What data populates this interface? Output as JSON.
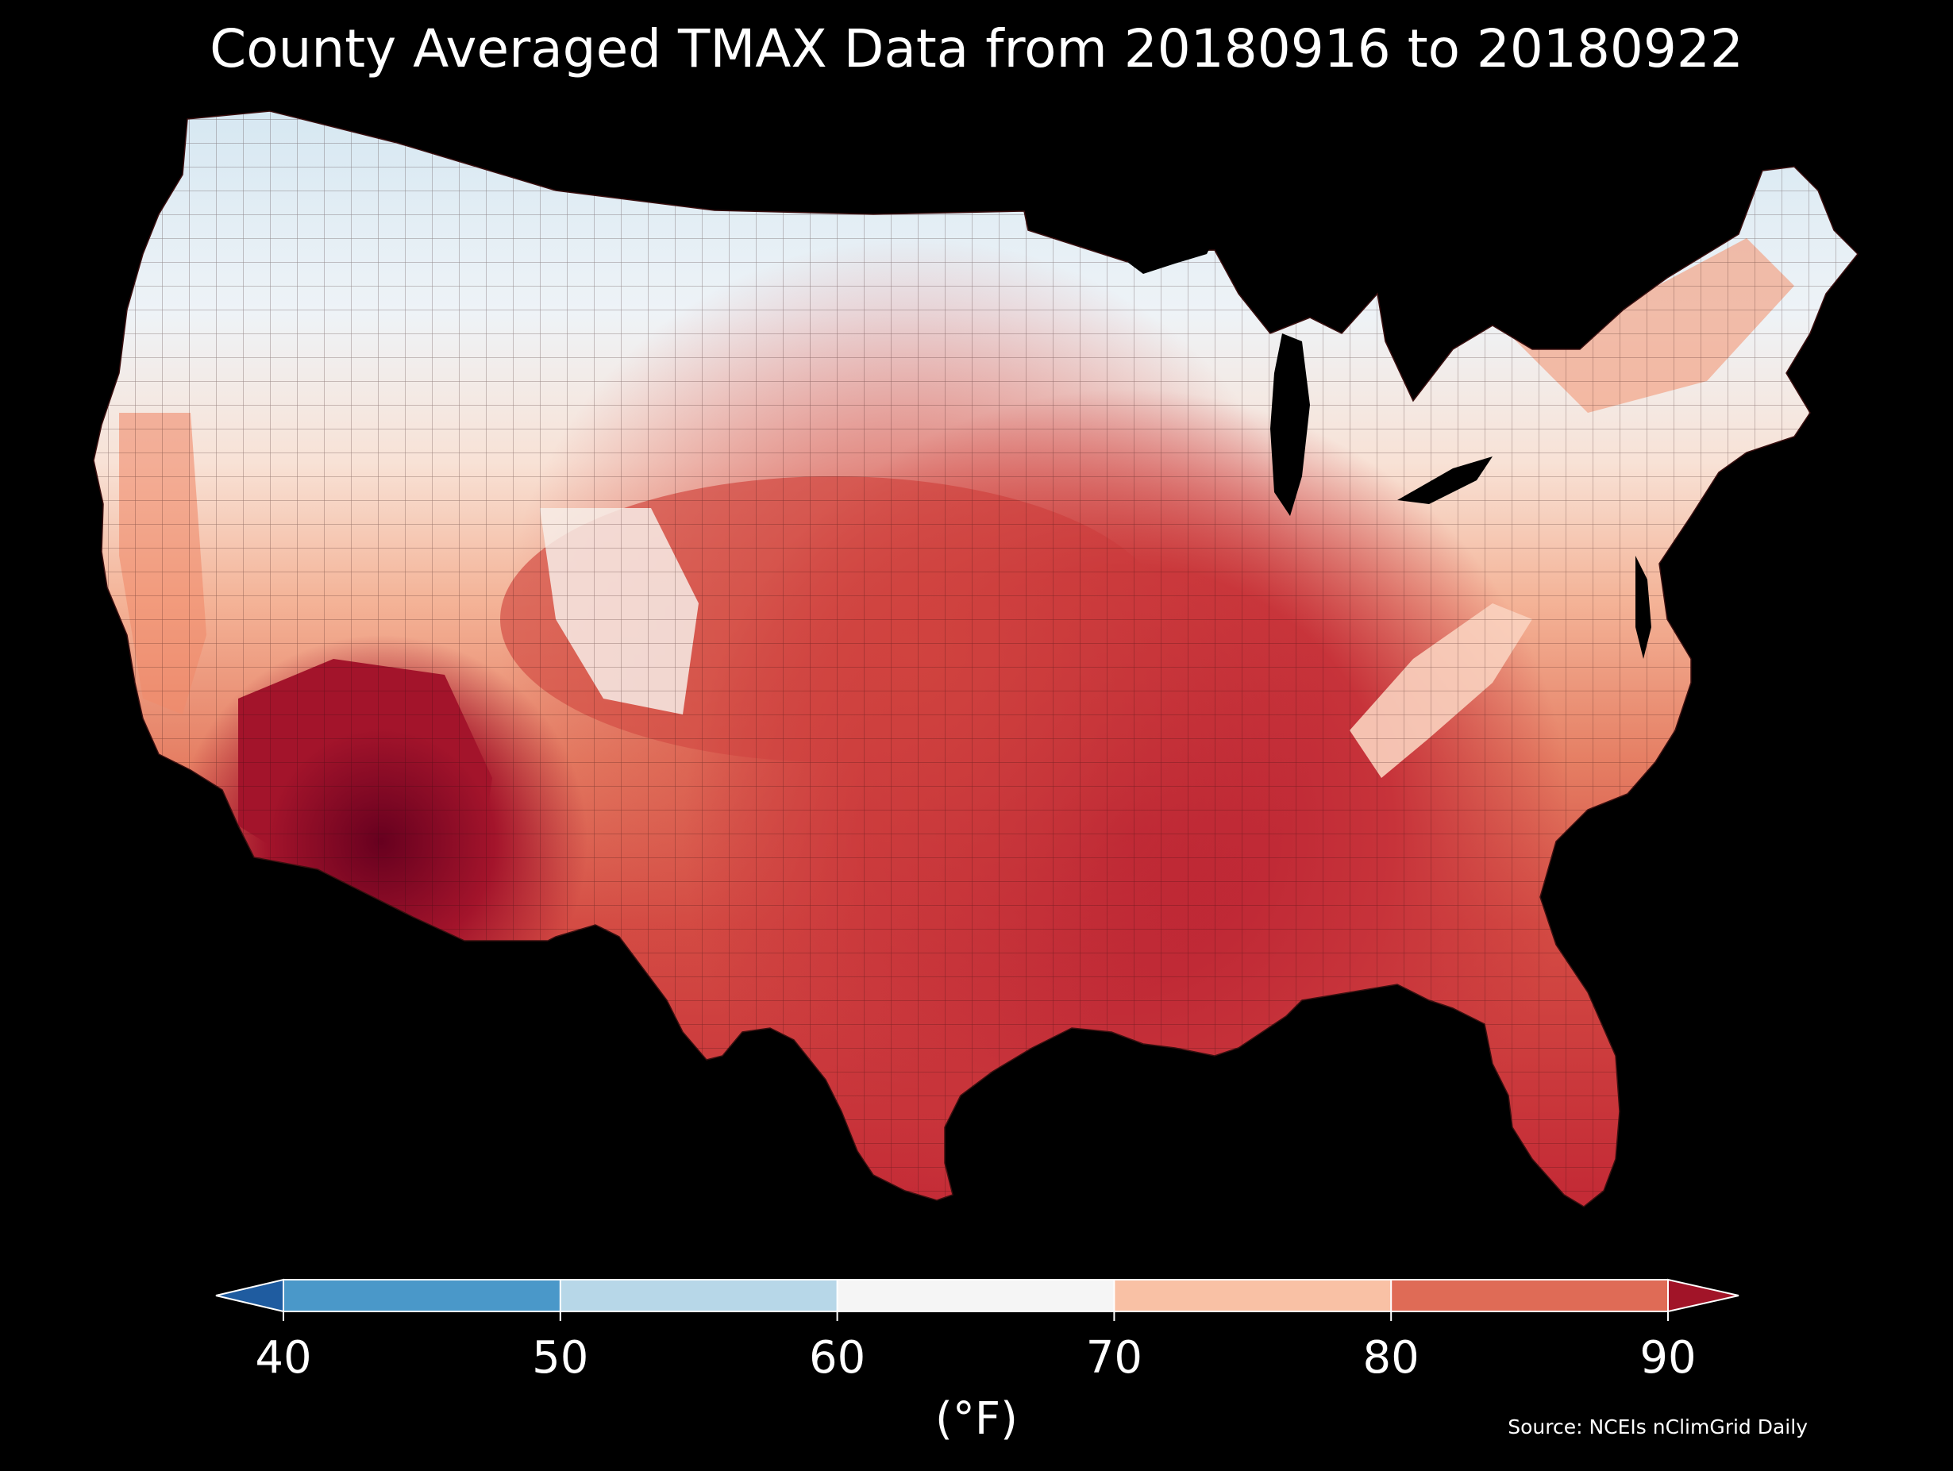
{
  "title": "County Averaged TMAX Data from 20180916 to 20180922",
  "colorbar": {
    "units_label": "(°F)",
    "ticks": [
      "40",
      "50",
      "60",
      "70",
      "80",
      "90"
    ],
    "bins": [
      {
        "range": [
          40,
          50
        ],
        "color": "#4a98c9"
      },
      {
        "range": [
          50,
          60
        ],
        "color": "#b7d7e8"
      },
      {
        "range": [
          60,
          70
        ],
        "color": "#f5f5f5"
      },
      {
        "range": [
          70,
          80
        ],
        "color": "#f9c1a5"
      },
      {
        "range": [
          80,
          90
        ],
        "color": "#df6b56"
      }
    ],
    "under_color": "#1f5ca0",
    "over_color": "#a11428"
  },
  "source": "Source: NCEIs nClimGrid Daily",
  "map": {
    "region": "Contiguous United States, county level",
    "variable": "TMAX",
    "colors": {
      "north_tier": "#eaf2f8",
      "north_central": "#f7ece6",
      "plains": "#f6b99c",
      "southern_interior": "#cf3b3d",
      "gulf_coast": "#c32a35",
      "desert_southwest": "#8e0c25",
      "appalachians": "#f7c3aa",
      "background": "#000000"
    }
  }
}
